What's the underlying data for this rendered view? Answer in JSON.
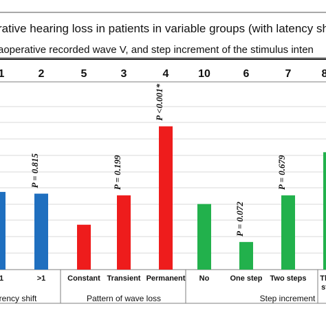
{
  "header": {
    "line1": "rative hearing loss in patients in variable groups (with latency shift,",
    "line2": "aoperative recorded wave V, and step increment of the  stimulus inten"
  },
  "chart_data": {
    "type": "bar",
    "title": "",
    "xlabel": "",
    "ylabel": "",
    "ylim": [
      0,
      100
    ],
    "grid": true,
    "legend": "none",
    "categories": [
      ">1",
      "Constant",
      "Transient",
      "Permanent",
      "No",
      "One step",
      "Two steps"
    ],
    "values": [
      44,
      26,
      43,
      83,
      38,
      16,
      43
    ],
    "counts": [
      "2",
      "5",
      "3",
      "4",
      "10",
      "6",
      "7"
    ],
    "partial_left": {
      "count_label": "1",
      "category_label": "1",
      "value": 45
    },
    "partial_right": {
      "count_label": "8",
      "category_label": "Th",
      "category_label_line2": "st",
      "value": 68
    },
    "p_values": [
      "P = 0.815",
      "P = 0.199",
      "P <0.001*",
      "P = 0.072",
      "P = 0.679"
    ],
    "groups": [
      "arency shift",
      "Pattern of wave loss",
      "Step increment"
    ],
    "colors": {
      "latency": "#1f6fbf",
      "wave": "#ee1c1c",
      "step": "#22b14c",
      "grid": "#d9d9d9",
      "axis": "#7f7f7f"
    }
  }
}
